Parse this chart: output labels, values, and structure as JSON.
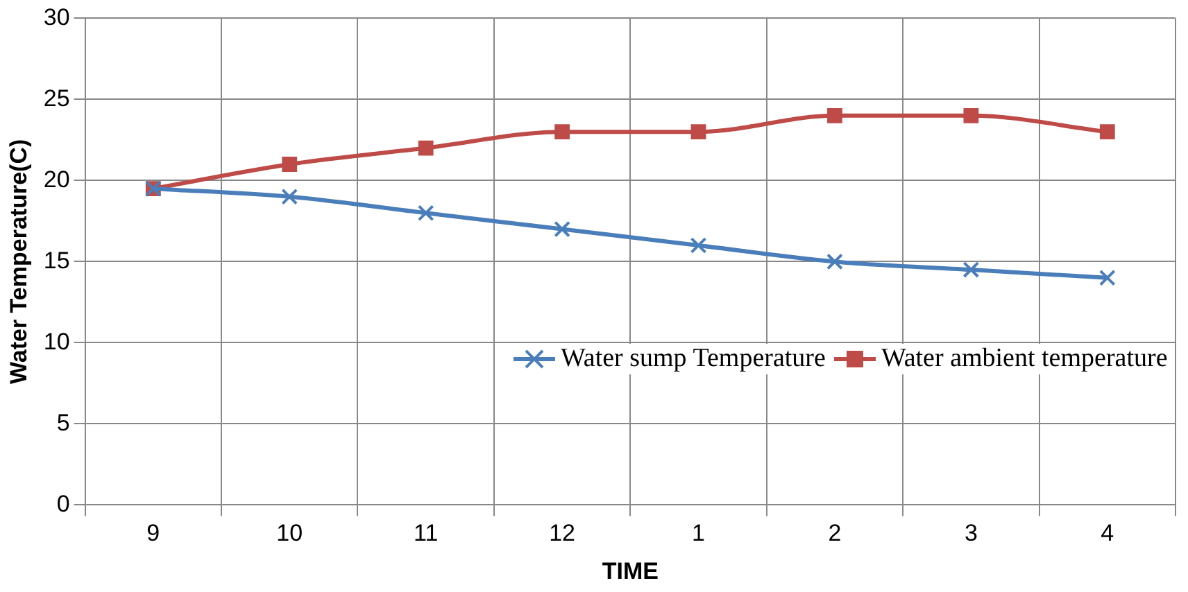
{
  "chart_data": {
    "type": "line",
    "xlabel": "TIME",
    "ylabel": "Water Temperature(C)",
    "categories": [
      "9",
      "10",
      "11",
      "12",
      "1",
      "2",
      "3",
      "4"
    ],
    "series": [
      {
        "name": "Water sump Temperature",
        "color": "#4a7ebb",
        "marker": "cross",
        "values": [
          19.5,
          19,
          18,
          17,
          16,
          15,
          14.5,
          14
        ]
      },
      {
        "name": "Water ambient temperature",
        "color": "#be4b48",
        "marker": "square",
        "values": [
          19.5,
          21,
          22,
          23,
          23,
          24,
          24,
          23
        ]
      }
    ],
    "ylim": [
      0,
      30
    ],
    "yticks": [
      0,
      5,
      10,
      15,
      20,
      25,
      30
    ],
    "grid": true,
    "legend": "bottom right"
  }
}
